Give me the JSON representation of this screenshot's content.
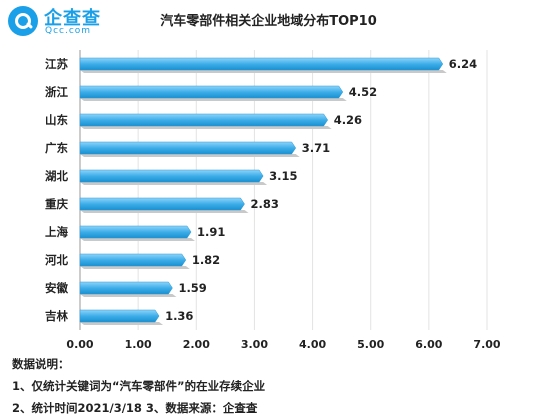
{
  "brand": {
    "name": "企查查",
    "domain": "Qcc.com",
    "color": "#1aa0e8"
  },
  "chart_data": {
    "type": "bar",
    "orientation": "horizontal",
    "title": "汽车零部件相关企业地域分布TOP10",
    "categories": [
      "江苏",
      "浙江",
      "山东",
      "广东",
      "湖北",
      "重庆",
      "上海",
      "河北",
      "安徽",
      "吉林"
    ],
    "values": [
      6.24,
      4.52,
      4.26,
      3.71,
      3.15,
      2.83,
      1.91,
      1.82,
      1.59,
      1.36
    ],
    "value_labels": [
      "6.24",
      "4.52",
      "4.26",
      "3.71",
      "3.15",
      "2.83",
      "1.91",
      "1.82",
      "1.59",
      "1.36"
    ],
    "xlim": [
      0,
      7
    ],
    "xticks": [
      "0.00",
      "1.00",
      "2.00",
      "3.00",
      "4.00",
      "5.00",
      "6.00",
      "7.00"
    ],
    "bar_color": "#3daee9",
    "grid": true
  },
  "notes": {
    "heading": "数据说明：",
    "line1": "1、仅统计关键词为“汽车零部件”的在业存续企业",
    "line2": "2、统计时间2021/3/18   3、数据来源：企查查"
  }
}
